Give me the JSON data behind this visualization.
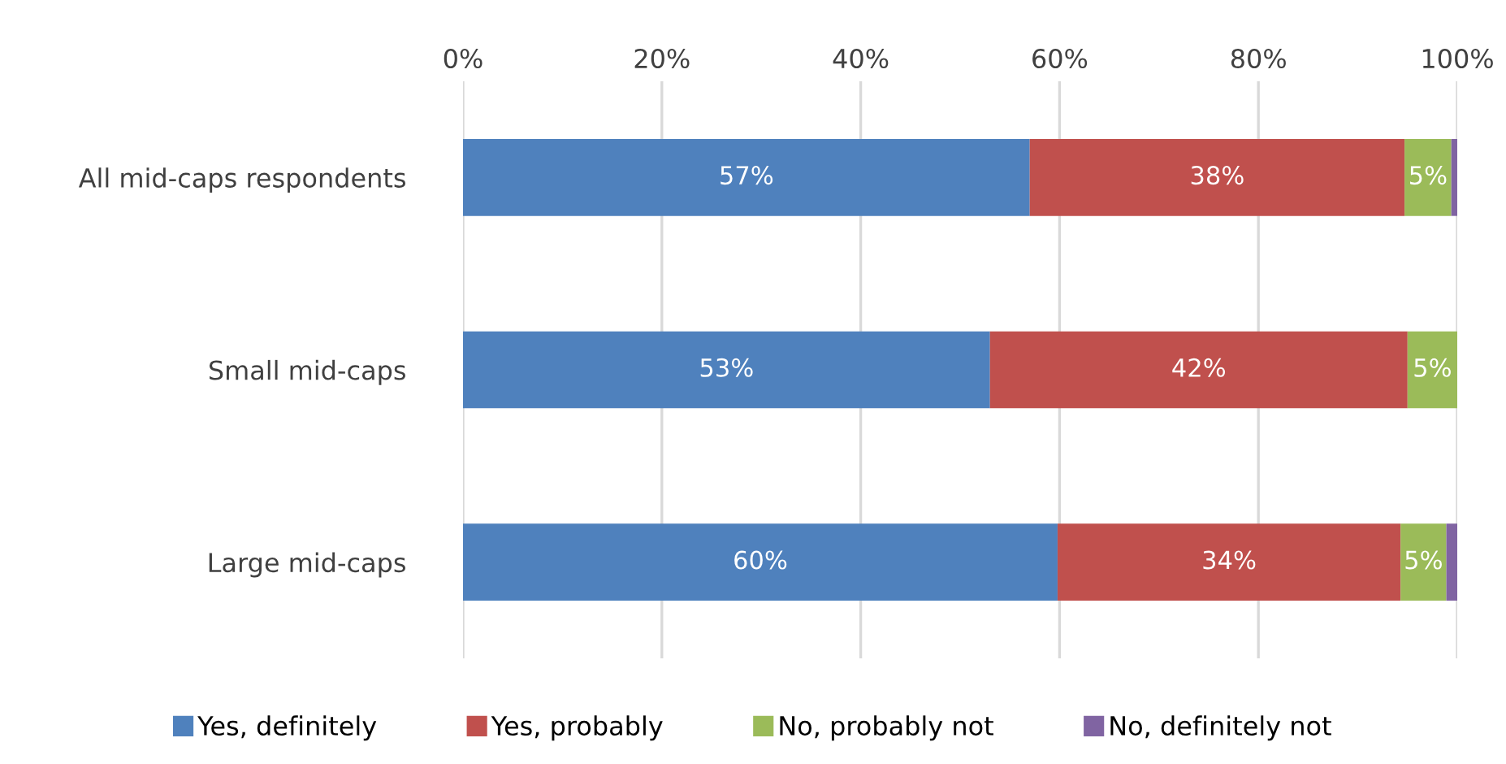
{
  "chart_data": {
    "type": "bar",
    "orientation": "horizontal",
    "stacked": true,
    "categories": [
      "All mid-caps respondents",
      "Small mid-caps",
      "Large mid-caps"
    ],
    "series": [
      {
        "name": "Yes, definitely",
        "color": "#4f81bd",
        "values": [
          57,
          53,
          59.8
        ],
        "value_labels": [
          "57%",
          "53%",
          "60%"
        ]
      },
      {
        "name": "Yes, probably",
        "color": "#c0504d",
        "values": [
          37.7,
          42,
          34.5
        ],
        "value_labels": [
          "38%",
          "42%",
          "34%"
        ]
      },
      {
        "name": "No, probably not",
        "color": "#9bbb59",
        "values": [
          4.7,
          5,
          4.6
        ],
        "value_labels": [
          "5%",
          "5%",
          "5%"
        ]
      },
      {
        "name": "No, definitely not",
        "color": "#8064a2",
        "values": [
          0.6,
          0,
          1.1
        ],
        "value_labels": [
          null,
          null,
          null
        ]
      }
    ],
    "xlim": [
      0,
      100
    ],
    "xticks": [
      {
        "value": 0,
        "label": "0%"
      },
      {
        "value": 20,
        "label": "20%"
      },
      {
        "value": 40,
        "label": "40%"
      },
      {
        "value": 60,
        "label": "60%"
      },
      {
        "value": 80,
        "label": "80%"
      },
      {
        "value": 100,
        "label": "100%"
      }
    ],
    "grid": "x",
    "legend": "bottom"
  }
}
